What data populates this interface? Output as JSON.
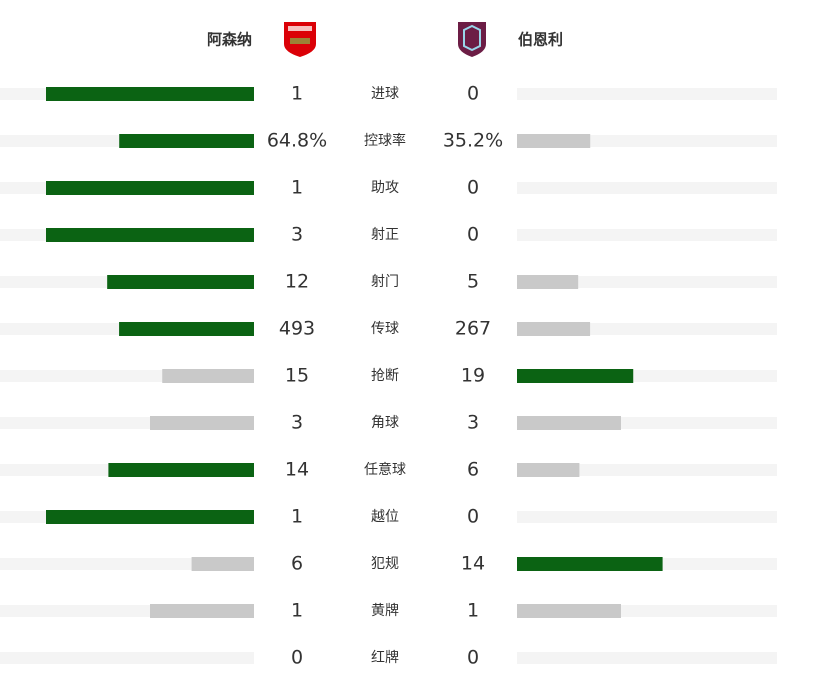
{
  "header": {
    "home_team": "阿森纳",
    "away_team": "伯恩利"
  },
  "stats": [
    {
      "label": "进球",
      "home": 1,
      "away": 0
    },
    {
      "label": "控球率",
      "home": 64.8,
      "away": 35.2,
      "home_label": "64.8%",
      "away_label": "35.2%"
    },
    {
      "label": "助攻",
      "home": 1,
      "away": 0
    },
    {
      "label": "射正",
      "home": 3,
      "away": 0
    },
    {
      "label": "射门",
      "home": 12,
      "away": 5
    },
    {
      "label": "传球",
      "home": 493,
      "away": 267
    },
    {
      "label": "抢断",
      "home": 15,
      "away": 19
    },
    {
      "label": "角球",
      "home": 3,
      "away": 3
    },
    {
      "label": "任意球",
      "home": 14,
      "away": 6
    },
    {
      "label": "越位",
      "home": 1,
      "away": 0
    },
    {
      "label": "犯规",
      "home": 6,
      "away": 14
    },
    {
      "label": "黄牌",
      "home": 1,
      "away": 1
    },
    {
      "label": "红牌",
      "home": 0,
      "away": 0
    }
  ]
}
